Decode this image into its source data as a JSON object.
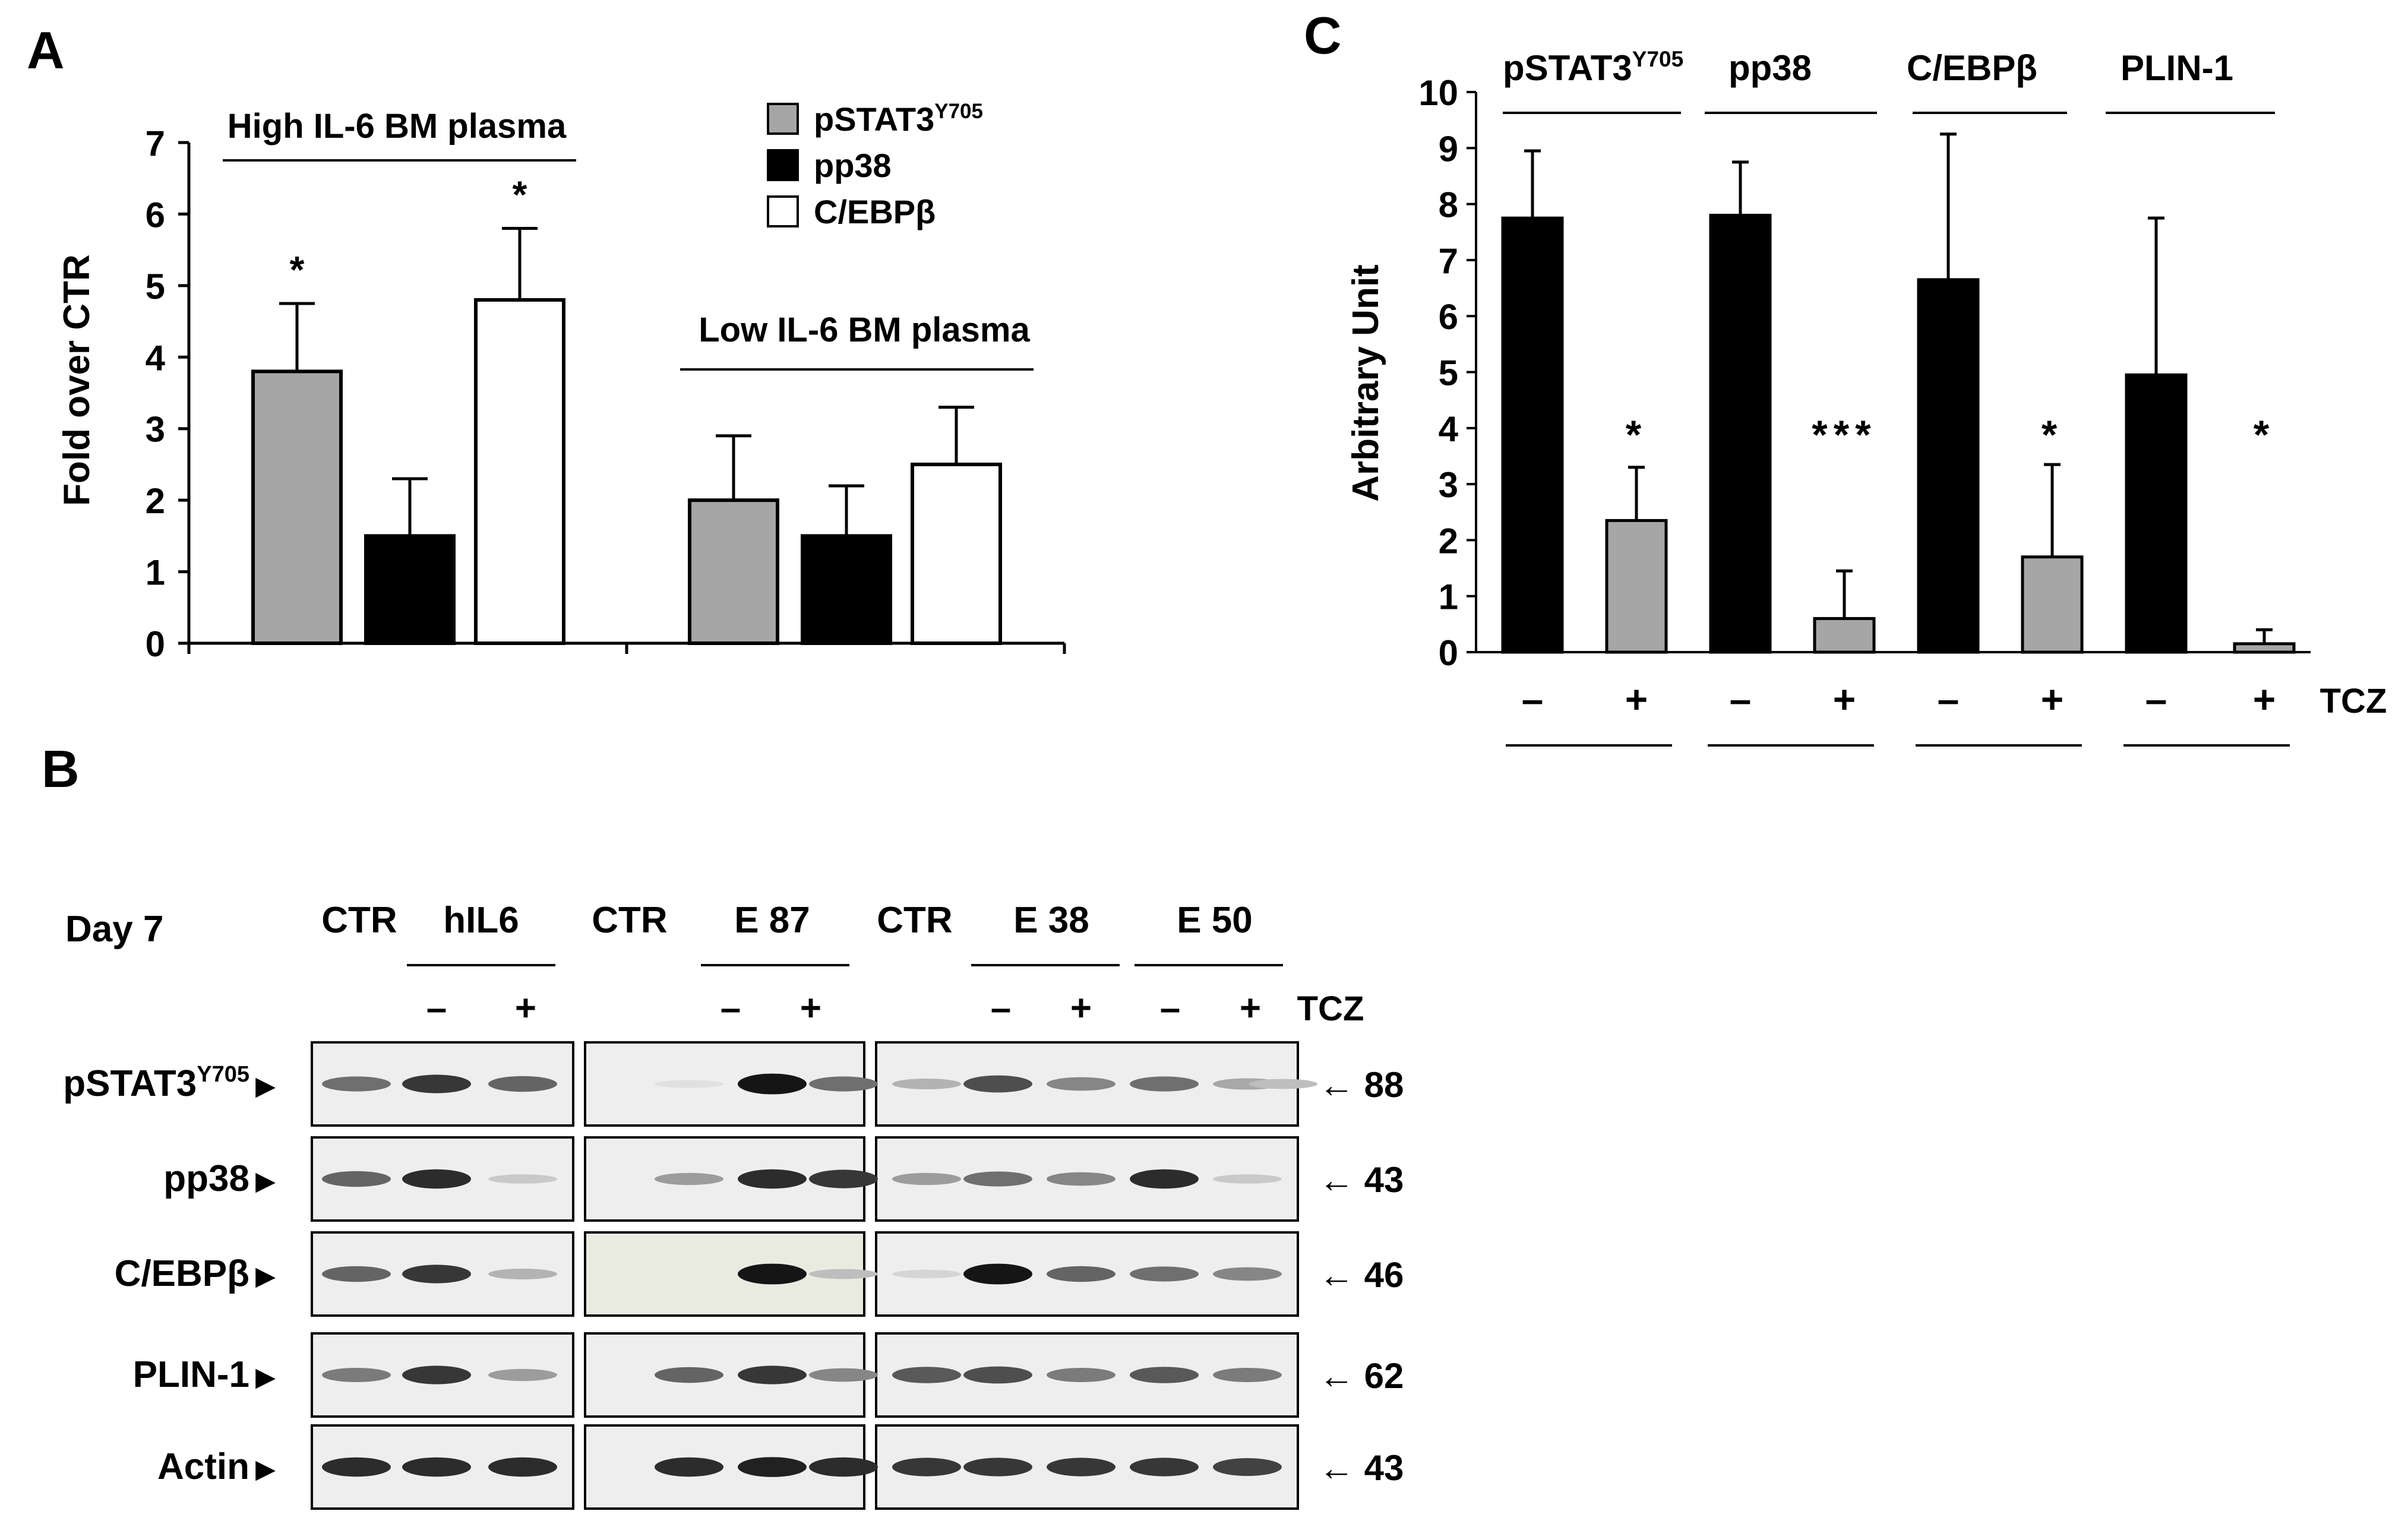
{
  "panels": {
    "a_label": "A",
    "b_label": "B",
    "c_label": "C"
  },
  "colors": {
    "gray": "#a6a6a6",
    "black": "#000000",
    "white": "#ffffff"
  },
  "chart_data": [
    {
      "id": "panelA",
      "type": "bar",
      "title": "",
      "ylabel": "Fold over CTR",
      "xlabel": "",
      "ylim": [
        0,
        7
      ],
      "yticks": [
        0,
        1,
        2,
        3,
        4,
        5,
        6,
        7
      ],
      "groups": [
        "High IL-6 BM plasma",
        "Low IL-6 BM plasma"
      ],
      "legend": [
        {
          "base": "pSTAT3",
          "sup": "Y705",
          "color": "#a6a6a6"
        },
        {
          "base": "pp38",
          "sup": "",
          "color": "#000000"
        },
        {
          "base": "C/EBPβ",
          "sup": "",
          "color": "#ffffff"
        }
      ],
      "series": [
        {
          "name": "pSTAT3Y705",
          "values": [
            3.8,
            2.0
          ],
          "errors": [
            0.95,
            0.9
          ],
          "significance": [
            "*",
            ""
          ]
        },
        {
          "name": "pp38",
          "values": [
            1.5,
            1.5
          ],
          "errors": [
            0.8,
            0.7
          ],
          "significance": [
            "",
            ""
          ]
        },
        {
          "name": "C/EBPβ",
          "values": [
            4.8,
            2.5
          ],
          "errors": [
            1.0,
            0.8
          ],
          "significance": [
            "*",
            ""
          ]
        }
      ]
    },
    {
      "id": "panelC",
      "type": "bar",
      "title": "",
      "ylabel": "Arbitrary Unit",
      "xlabel": "",
      "ylim": [
        0,
        10
      ],
      "yticks": [
        0,
        1,
        2,
        3,
        4,
        5,
        6,
        7,
        8,
        9,
        10
      ],
      "groups": [
        {
          "base": "pSTAT3",
          "sup": "Y705"
        },
        {
          "base": "pp38",
          "sup": ""
        },
        {
          "base": "C/EBPβ",
          "sup": ""
        },
        {
          "base": "PLIN-1",
          "sup": ""
        }
      ],
      "treatment_label": "TCZ",
      "treatment_signs": [
        "–",
        "+"
      ],
      "series": [
        {
          "name": "TCZ –",
          "color": "#000000",
          "values": [
            7.75,
            7.8,
            6.65,
            4.95
          ],
          "errors": [
            1.2,
            0.95,
            2.6,
            2.8
          ],
          "significance": [
            "",
            "",
            "",
            ""
          ]
        },
        {
          "name": "TCZ +",
          "color": "#a6a6a6",
          "values": [
            2.35,
            0.6,
            1.7,
            0.15
          ],
          "errors": [
            0.95,
            0.85,
            1.65,
            0.25
          ],
          "significance": [
            "*",
            "***",
            "*",
            "*"
          ]
        }
      ]
    }
  ],
  "blot": {
    "day_label": "Day 7",
    "header_labels": [
      "CTR",
      "hIL6",
      "CTR",
      "E 87",
      "CTR",
      "E 38",
      "E 50"
    ],
    "signs": [
      "–",
      "+",
      "–",
      "+",
      "–",
      "+",
      "–",
      "+"
    ],
    "tcz_label": "TCZ",
    "rows": [
      {
        "base": "pSTAT3",
        "sup": "Y705",
        "mw": "← 88"
      },
      {
        "base": "pp38",
        "sup": "",
        "mw": "← 43"
      },
      {
        "base": "C/EBPβ",
        "sup": "",
        "mw": "← 46"
      },
      {
        "base": "PLIN-1",
        "sup": "",
        "mw": "← 62"
      },
      {
        "base": "Actin",
        "sup": "",
        "mw": "← 43"
      }
    ],
    "band_intensity": [
      [
        0.55,
        0.8,
        0.6,
        0.0,
        0.05,
        0.95,
        0.55,
        0.25,
        0.7,
        0.45,
        0.55,
        0.3,
        0.2
      ],
      [
        0.6,
        0.85,
        0.15,
        0.0,
        0.35,
        0.85,
        0.8,
        0.35,
        0.55,
        0.45,
        0.85,
        0.15,
        0.0
      ],
      [
        0.6,
        0.8,
        0.25,
        0.0,
        0.0,
        0.95,
        0.2,
        0.1,
        0.95,
        0.6,
        0.55,
        0.45,
        0.0
      ],
      [
        0.5,
        0.8,
        0.35,
        0.0,
        0.6,
        0.8,
        0.45,
        0.65,
        0.7,
        0.5,
        0.65,
        0.5,
        0.0
      ],
      [
        0.85,
        0.85,
        0.85,
        0.0,
        0.85,
        0.9,
        0.85,
        0.8,
        0.8,
        0.8,
        0.8,
        0.75,
        0.0
      ]
    ]
  }
}
